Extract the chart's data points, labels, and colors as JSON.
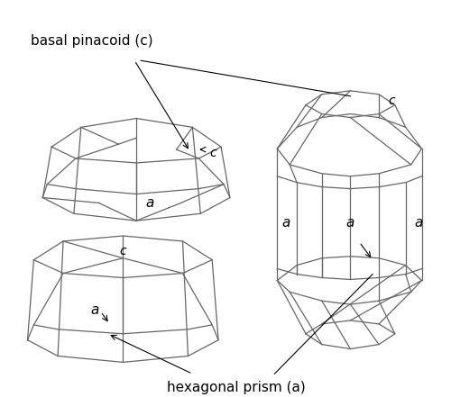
{
  "bg_color": "#ffffff",
  "line_color": "#666666",
  "text_color": "#000000",
  "line_width": 0.9,
  "fig_width": 5.0,
  "fig_height": 4.41,
  "dpi": 100,
  "label_basal": "basal pinacoid (c)",
  "label_hexagonal": "hexagonal prism (a)",
  "label_a": "a",
  "label_c": "c"
}
